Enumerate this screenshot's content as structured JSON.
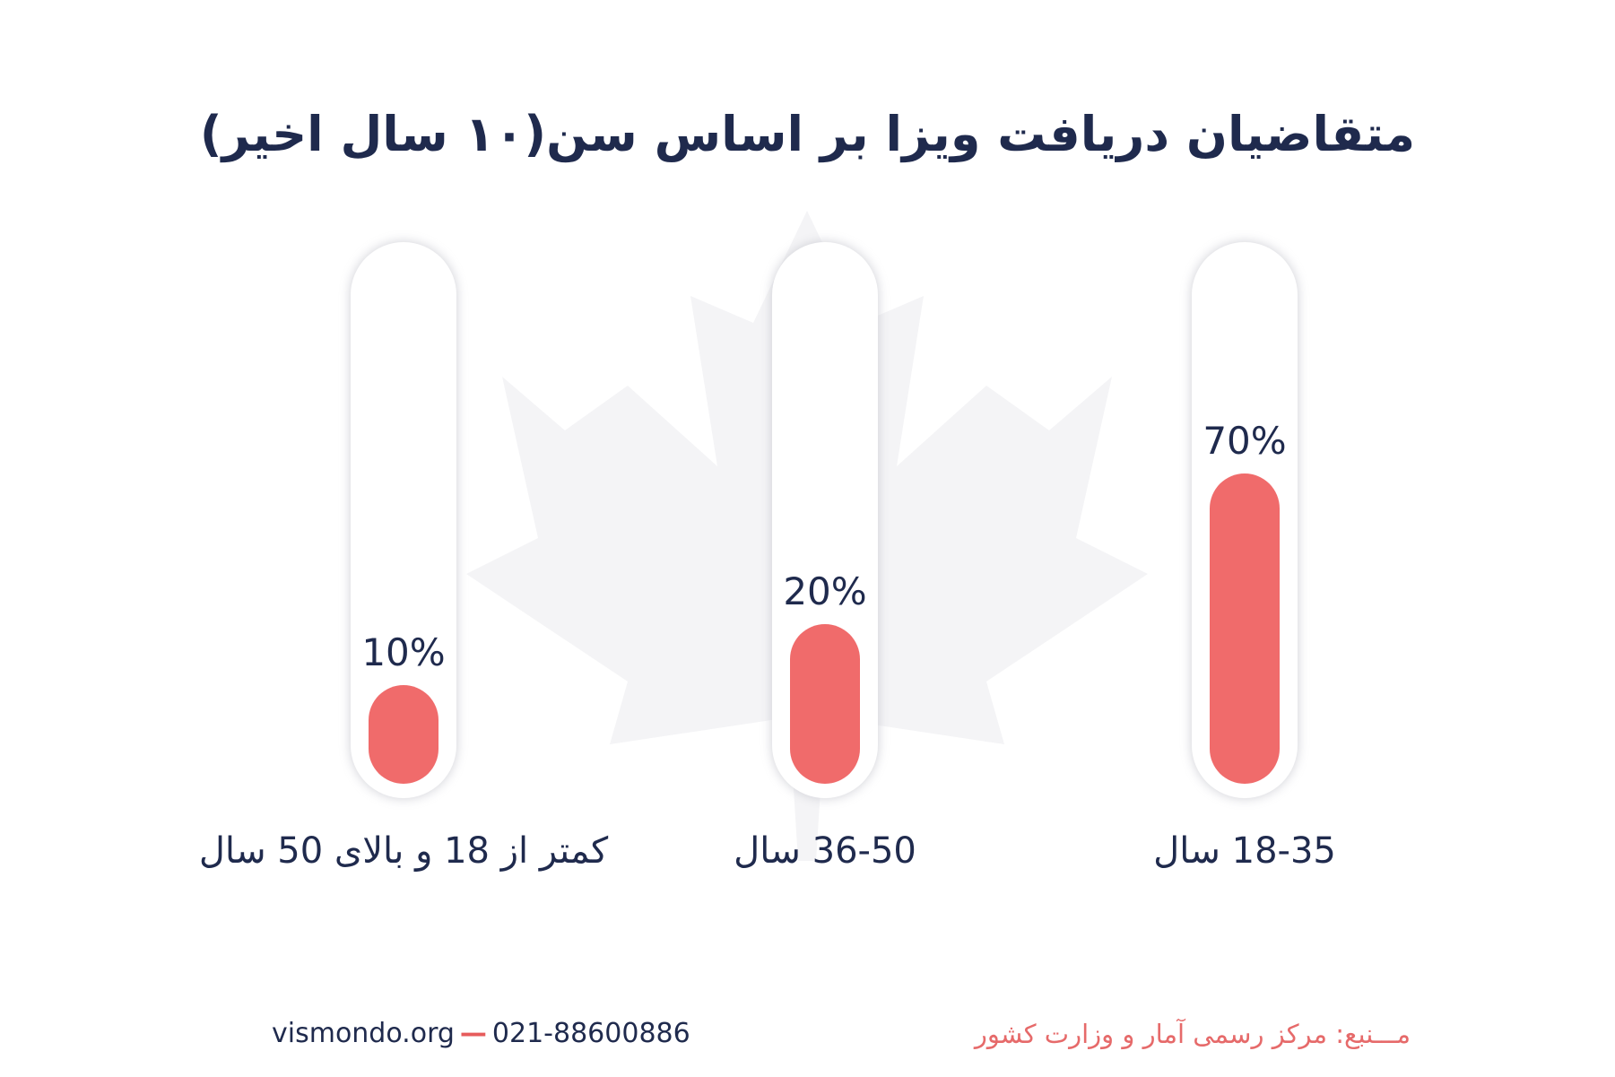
{
  "colors": {
    "title": "#1f2a4d",
    "bar_fill": "#f06b6b",
    "track": "#ffffff",
    "track_shadow": "#dcdde3",
    "source": "#e66a6a"
  },
  "footer": {
    "website": "vismondo.org",
    "phone": "021-88600886",
    "source": "مـــنبع: مرکز رسمی آمار و وزارت کشور"
  },
  "chart_data": {
    "type": "bar",
    "title": "متقاضیان دریافت ویزا بر اساس سن(۱۰ سال اخیر)",
    "categories": [
      "18-35 سال",
      "36-50 سال",
      "کمتر از 18 و بالای 50 سال"
    ],
    "values": [
      70,
      20,
      10
    ],
    "value_labels": [
      "70%",
      "20%",
      "10%"
    ],
    "unit": "%",
    "ylim": [
      0,
      100
    ],
    "grid": false,
    "legend": "none",
    "xlabel": "",
    "ylabel": ""
  }
}
